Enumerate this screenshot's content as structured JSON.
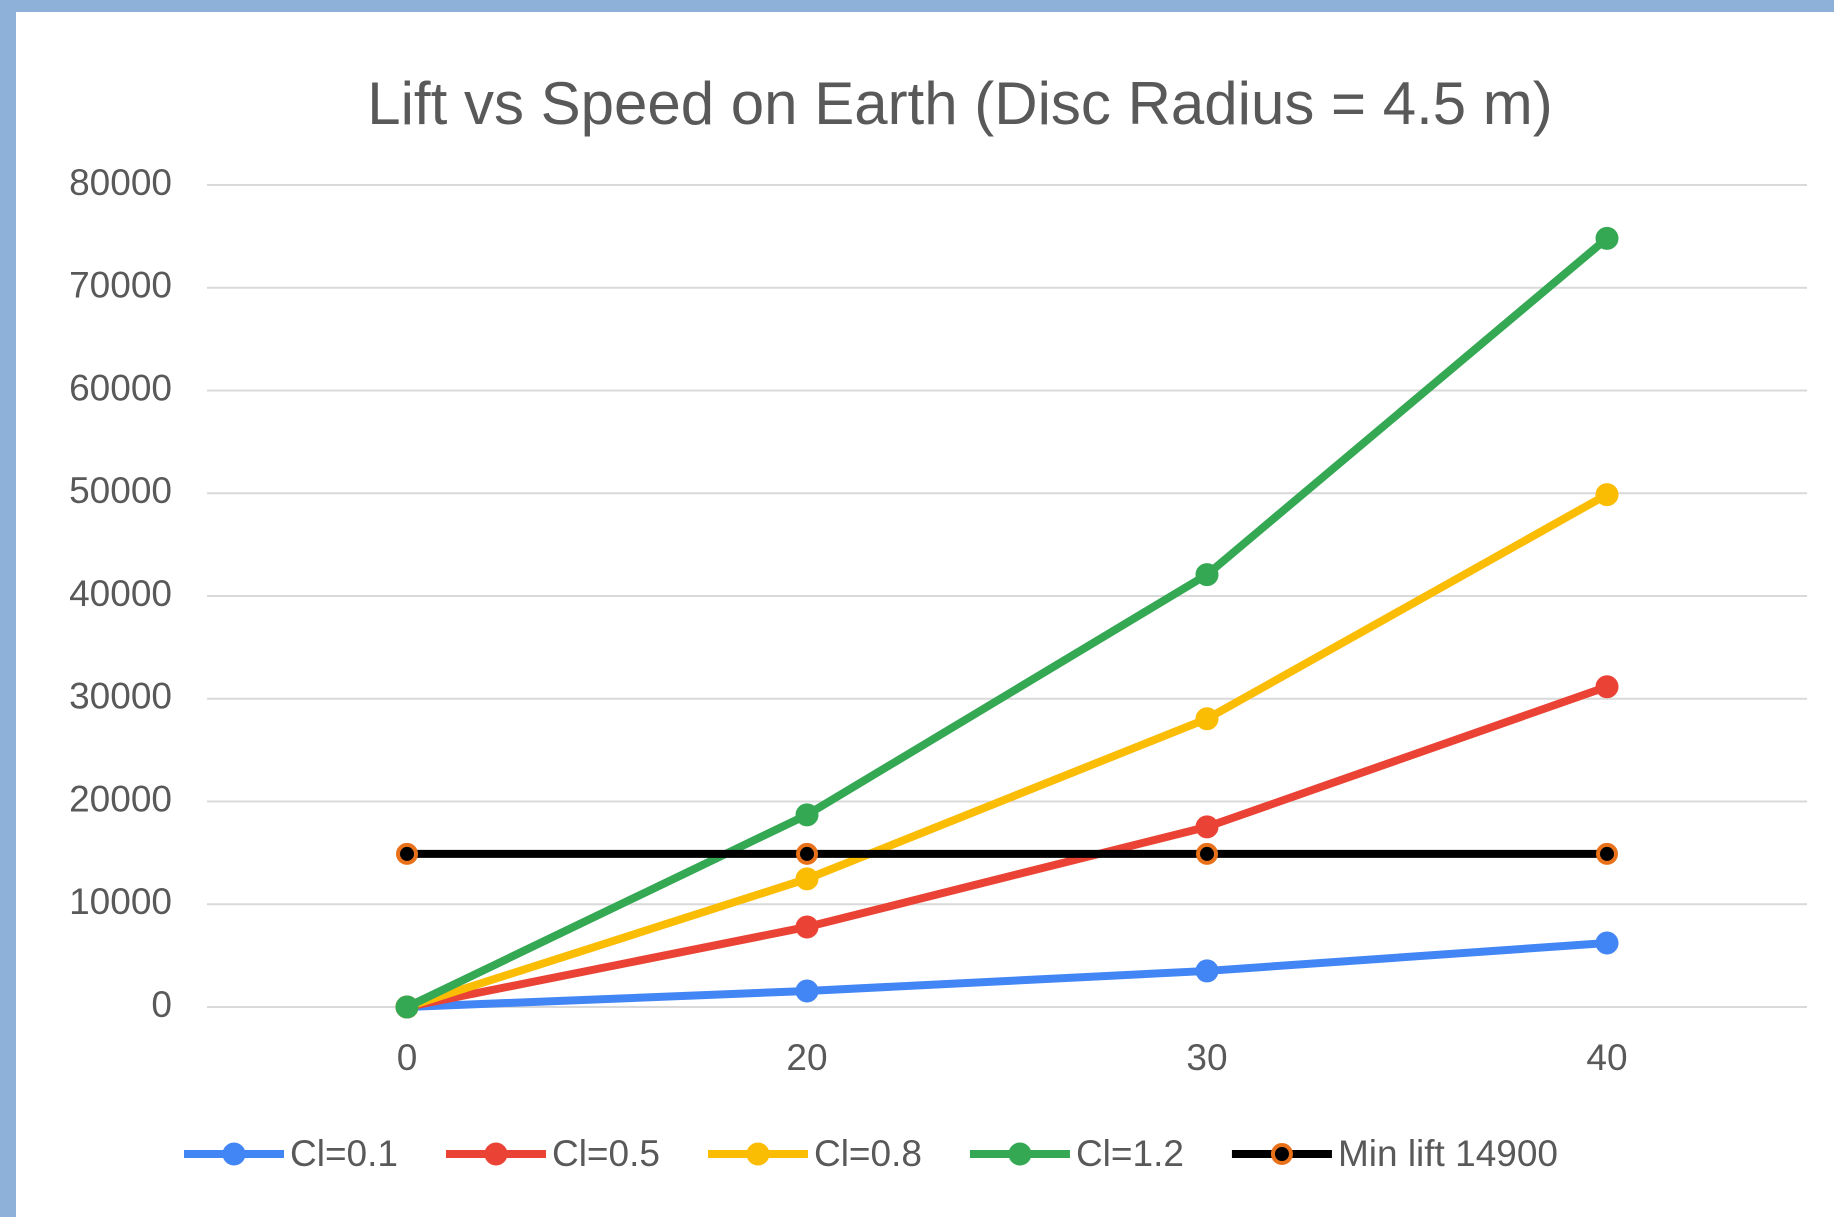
{
  "chart_data": {
    "type": "line",
    "title": "Lift vs Speed on Earth (Disc Radius = 4.5 m)",
    "categories": [
      "0",
      "20",
      "30",
      "40"
    ],
    "series": [
      {
        "name": "Cl=0.1",
        "color": "#4285f4",
        "values": [
          0,
          1560,
          3510,
          6230
        ]
      },
      {
        "name": "Cl=0.5",
        "color": "#ea4335",
        "values": [
          0,
          7790,
          17530,
          31170
        ]
      },
      {
        "name": "Cl=0.8",
        "color": "#fbbc04",
        "values": [
          0,
          12470,
          28050,
          49870
        ]
      },
      {
        "name": "Cl=1.2",
        "color": "#34a853",
        "values": [
          0,
          18700,
          42080,
          74810
        ]
      },
      {
        "name": "Min lift 14900",
        "color": "#000000",
        "marker_edge_color": "#e8711a",
        "values": [
          14900,
          14900,
          14900,
          14900
        ]
      }
    ],
    "ylim": [
      0,
      80000
    ],
    "yticks": [
      0,
      10000,
      20000,
      30000,
      40000,
      50000,
      60000,
      70000,
      80000
    ],
    "grid": true,
    "legend": "bottom"
  }
}
